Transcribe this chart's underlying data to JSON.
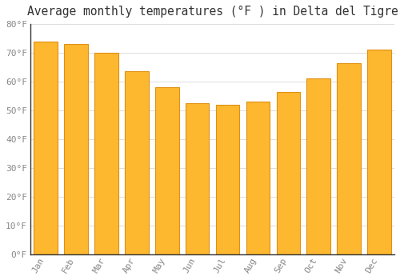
{
  "title": "Average monthly temperatures (°F ) in Delta del Tigre",
  "months": [
    "Jan",
    "Feb",
    "Mar",
    "Apr",
    "May",
    "Jun",
    "Jul",
    "Aug",
    "Sep",
    "Oct",
    "Nov",
    "Dec"
  ],
  "values": [
    74,
    73,
    70,
    63.5,
    58,
    52.5,
    52,
    53,
    56.5,
    61,
    66.5,
    71
  ],
  "bar_color_face": "#FDB830",
  "bar_color_edge": "#E09010",
  "background_color": "#FFFFFF",
  "grid_color": "#DDDDDD",
  "tick_color": "#888888",
  "spine_color": "#333333",
  "ylim": [
    0,
    80
  ],
  "ytick_step": 10,
  "title_fontsize": 10.5,
  "tick_fontsize": 8
}
